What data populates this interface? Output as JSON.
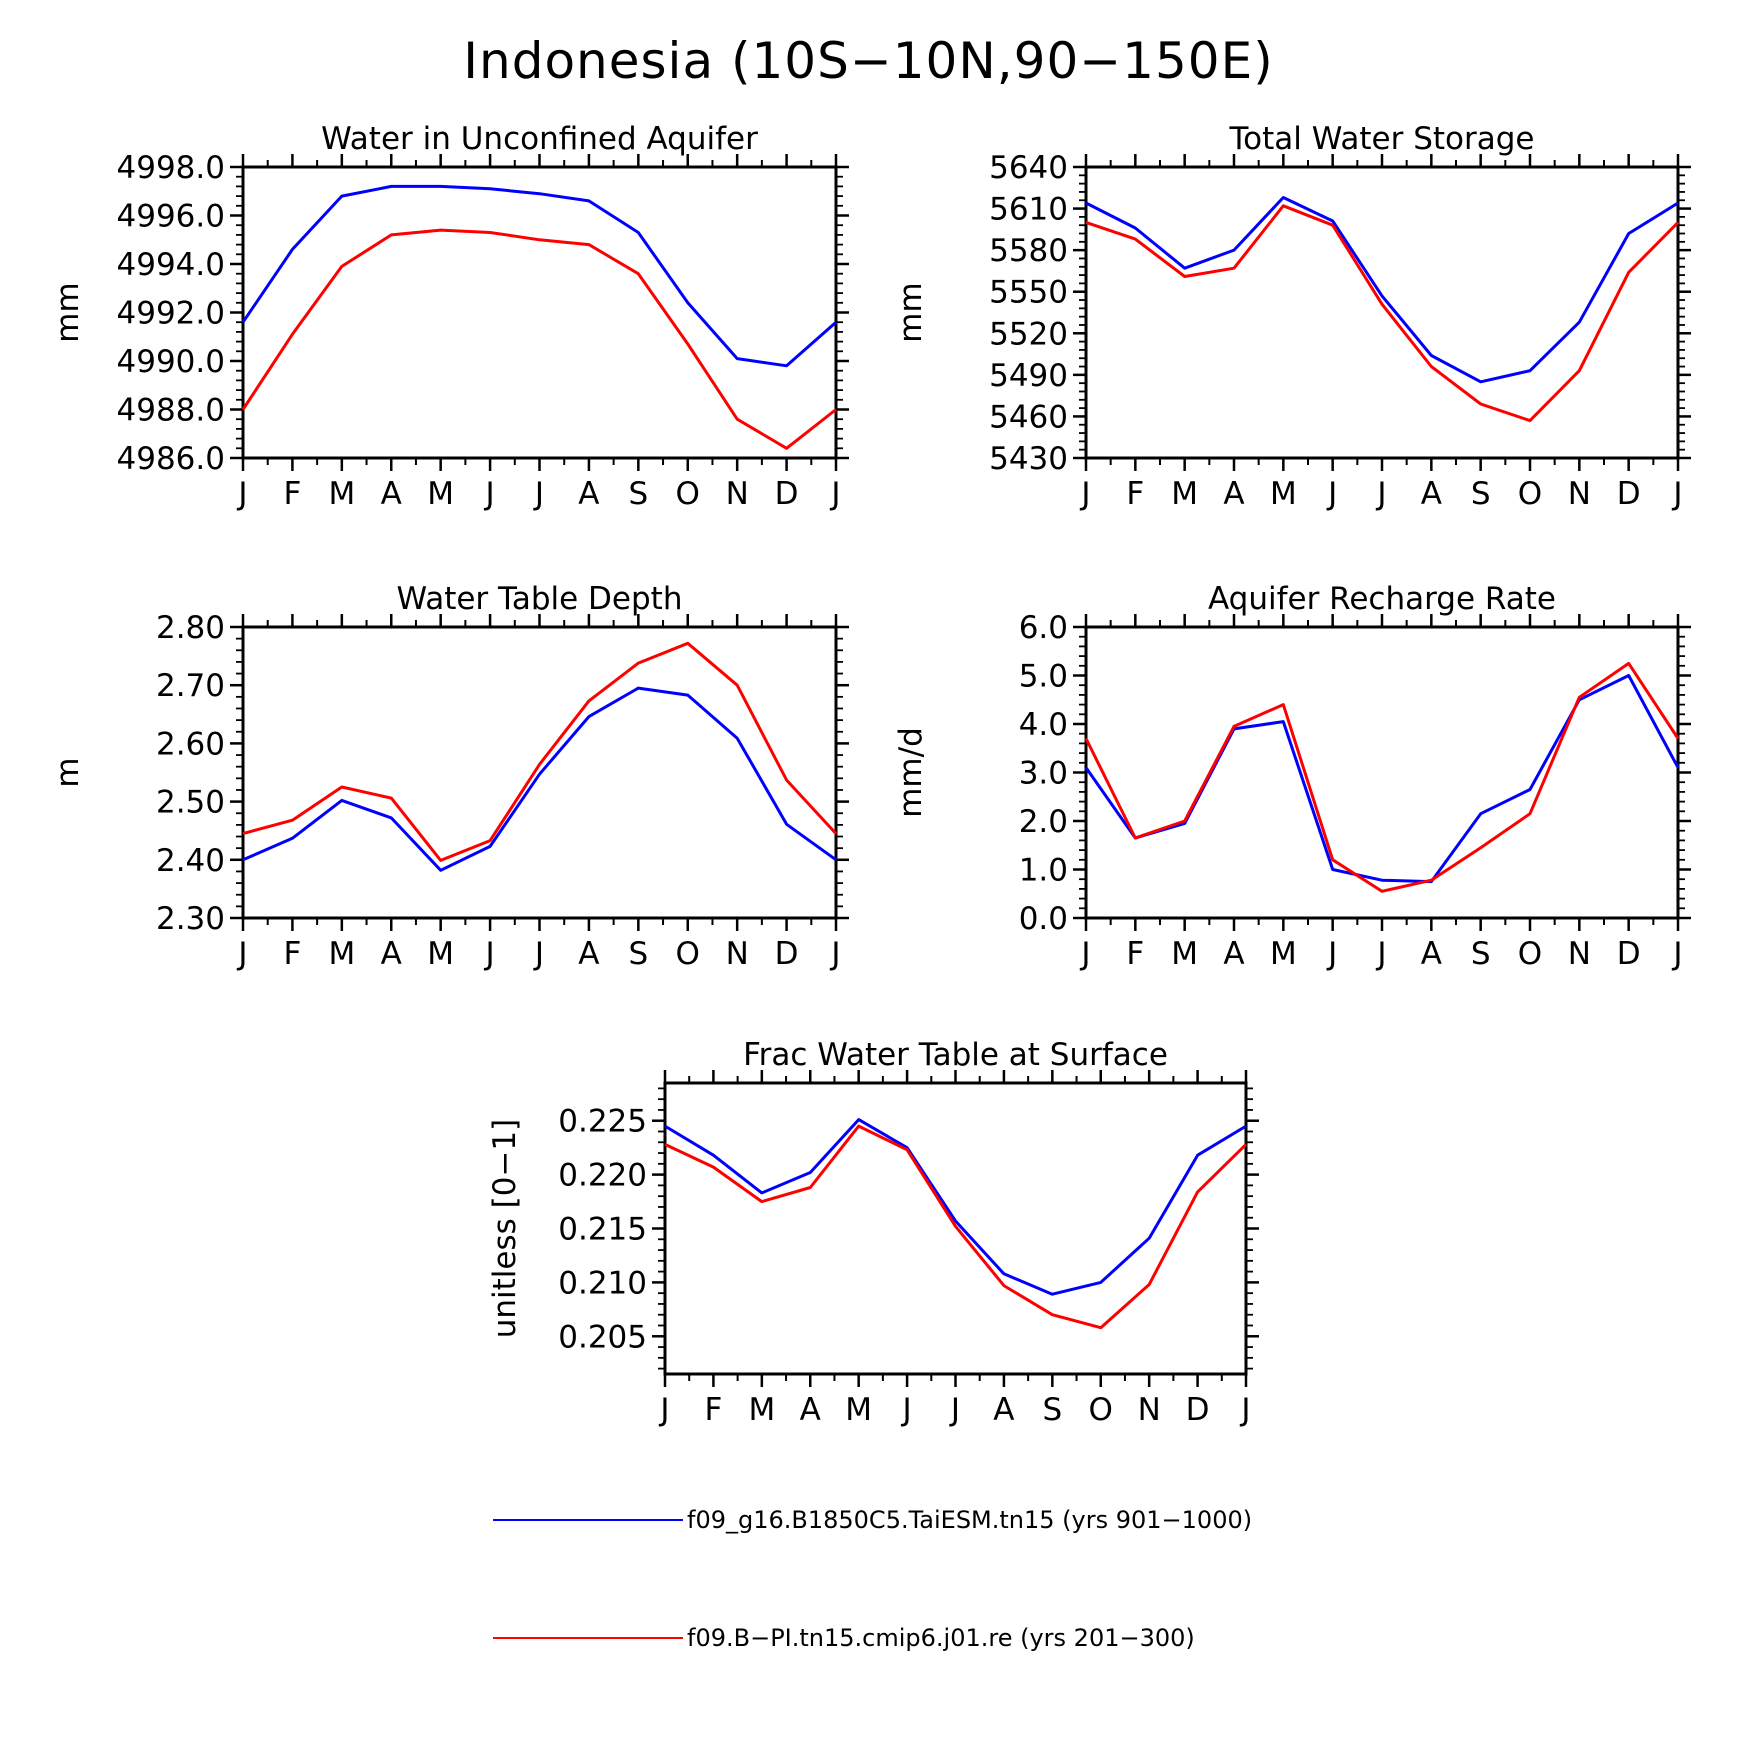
{
  "title": "Indonesia (10S−10N,90−150E)",
  "months": [
    "J",
    "F",
    "M",
    "A",
    "M",
    "J",
    "J",
    "A",
    "S",
    "O",
    "N",
    "D",
    "J"
  ],
  "legend": [
    {
      "label": "f09_g16.B1850C5.TaiESM.tn15 (yrs 901−1000)",
      "color": "#0000ff"
    },
    {
      "label": "f09.B−PI.tn15.cmip6.j01.re (yrs 201−300)",
      "color": "#ff0000"
    }
  ],
  "chart_data": [
    {
      "type": "line",
      "title": "Water in Unconfined Aquifer",
      "ylabel": "mm",
      "xlabel": "",
      "ylim": [
        4986.0,
        4998.0
      ],
      "yticks": [
        "4986.0",
        "4988.0",
        "4990.0",
        "4992.0",
        "4994.0",
        "4996.0",
        "4998.0"
      ],
      "x": [
        "J",
        "F",
        "M",
        "A",
        "M",
        "J",
        "J",
        "A",
        "S",
        "O",
        "N",
        "D",
        "J"
      ],
      "series": [
        {
          "name": "f09_g16.B1850C5.TaiESM.tn15 (yrs 901−1000)",
          "color": "#0000ff",
          "values": [
            4991.6,
            4994.6,
            4996.8,
            4997.2,
            4997.2,
            4997.1,
            4996.9,
            4996.6,
            4995.3,
            4992.4,
            4990.1,
            4989.8,
            4991.6
          ]
        },
        {
          "name": "f09.B−PI.tn15.cmip6.j01.re (yrs 201−300)",
          "color": "#ff0000",
          "values": [
            4988.0,
            4991.1,
            4993.9,
            4995.2,
            4995.4,
            4995.3,
            4995.0,
            4994.8,
            4993.6,
            4990.7,
            4987.6,
            4986.4,
            4988.0
          ]
        }
      ]
    },
    {
      "type": "line",
      "title": "Total Water Storage",
      "ylabel": "mm",
      "xlabel": "",
      "ylim": [
        5430,
        5640
      ],
      "yticks": [
        "5430",
        "5460",
        "5490",
        "5520",
        "5550",
        "5580",
        "5610",
        "5640"
      ],
      "x": [
        "J",
        "F",
        "M",
        "A",
        "M",
        "J",
        "J",
        "A",
        "S",
        "O",
        "N",
        "D",
        "J"
      ],
      "series": [
        {
          "name": "f09_g16.B1850C5.TaiESM.tn15 (yrs 901−1000)",
          "color": "#0000ff",
          "values": [
            5614,
            5596,
            5567,
            5580,
            5618,
            5601,
            5547,
            5504,
            5485,
            5493,
            5528,
            5592,
            5614
          ]
        },
        {
          "name": "f09.B−PI.tn15.cmip6.j01.re (yrs 201−300)",
          "color": "#ff0000",
          "values": [
            5600,
            5588,
            5561,
            5567,
            5612,
            5598,
            5541,
            5496,
            5469,
            5457,
            5493,
            5564,
            5600
          ]
        }
      ]
    },
    {
      "type": "line",
      "title": "Water Table Depth",
      "ylabel": "m",
      "xlabel": "",
      "ylim": [
        2.3,
        2.8
      ],
      "yticks": [
        "2.30",
        "2.40",
        "2.50",
        "2.60",
        "2.70",
        "2.80"
      ],
      "x": [
        "J",
        "F",
        "M",
        "A",
        "M",
        "J",
        "J",
        "A",
        "S",
        "O",
        "N",
        "D",
        "J"
      ],
      "series": [
        {
          "name": "f09_g16.B1850C5.TaiESM.tn15 (yrs 901−1000)",
          "color": "#0000ff",
          "values": [
            2.4,
            2.437,
            2.502,
            2.472,
            2.382,
            2.423,
            2.547,
            2.646,
            2.695,
            2.683,
            2.609,
            2.461,
            2.4
          ]
        },
        {
          "name": "f09.B−PI.tn15.cmip6.j01.re (yrs 201−300)",
          "color": "#ff0000",
          "values": [
            2.445,
            2.468,
            2.525,
            2.506,
            2.399,
            2.433,
            2.564,
            2.673,
            2.738,
            2.772,
            2.7,
            2.537,
            2.445
          ]
        }
      ]
    },
    {
      "type": "line",
      "title": "Aquifer Recharge Rate",
      "ylabel": "mm/d",
      "xlabel": "",
      "ylim": [
        0.0,
        6.0
      ],
      "yticks": [
        "0.0",
        "1.0",
        "2.0",
        "3.0",
        "4.0",
        "5.0",
        "6.0"
      ],
      "x": [
        "J",
        "F",
        "M",
        "A",
        "M",
        "J",
        "J",
        "A",
        "S",
        "O",
        "N",
        "D",
        "J"
      ],
      "series": [
        {
          "name": "f09_g16.B1850C5.TaiESM.tn15 (yrs 901−1000)",
          "color": "#0000ff",
          "values": [
            3.1,
            1.65,
            1.95,
            3.9,
            4.05,
            1.0,
            0.78,
            0.75,
            2.15,
            2.65,
            4.5,
            5.0,
            3.1
          ]
        },
        {
          "name": "f09.B−PI.tn15.cmip6.j01.re (yrs 201−300)",
          "color": "#ff0000",
          "values": [
            3.7,
            1.65,
            2.0,
            3.95,
            4.4,
            1.2,
            0.55,
            0.78,
            1.45,
            2.15,
            4.55,
            5.25,
            3.7
          ]
        }
      ]
    },
    {
      "type": "line",
      "title": "Frac Water Table at Surface",
      "ylabel": "unitless [0−1]",
      "xlabel": "",
      "ylim": [
        0.2015,
        0.2285
      ],
      "yticks": [
        "0.205",
        "0.210",
        "0.215",
        "0.220",
        "0.225"
      ],
      "x": [
        "J",
        "F",
        "M",
        "A",
        "M",
        "J",
        "J",
        "A",
        "S",
        "O",
        "N",
        "D",
        "J"
      ],
      "series": [
        {
          "name": "f09_g16.B1850C5.TaiESM.tn15 (yrs 901−1000)",
          "color": "#0000ff",
          "values": [
            0.2245,
            0.2218,
            0.2183,
            0.2202,
            0.2251,
            0.2225,
            0.2157,
            0.2108,
            0.2089,
            0.21,
            0.2141,
            0.2218,
            0.2245
          ]
        },
        {
          "name": "f09.B−PI.tn15.cmip6.j01.re (yrs 201−300)",
          "color": "#ff0000",
          "values": [
            0.2228,
            0.2207,
            0.2175,
            0.2188,
            0.2245,
            0.2223,
            0.2152,
            0.2097,
            0.207,
            0.2058,
            0.2098,
            0.2184,
            0.2228
          ]
        }
      ]
    }
  ]
}
